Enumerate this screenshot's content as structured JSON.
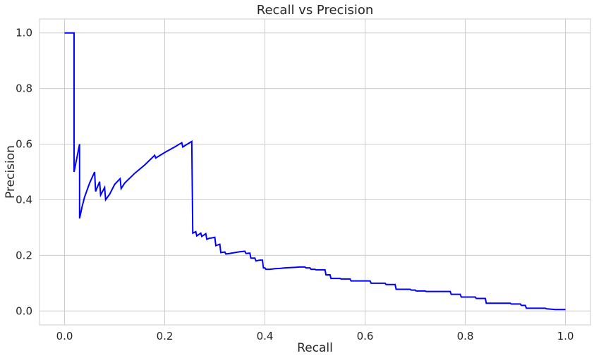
{
  "chart_data": {
    "type": "line",
    "title": "Recall vs Precision",
    "xlabel": "Recall",
    "ylabel": "Precision",
    "xlim": [
      -0.05,
      1.05
    ],
    "ylim": [
      -0.05,
      1.05
    ],
    "xticks": [
      "0.0",
      "0.2",
      "0.4",
      "0.6",
      "0.8",
      "1.0"
    ],
    "yticks": [
      "0.0",
      "0.2",
      "0.4",
      "0.6",
      "0.8",
      "1.0"
    ],
    "grid": true,
    "legend": "none",
    "series": [
      {
        "color": "#0000ff",
        "x": [
          0.0,
          0.019,
          0.019,
          0.03,
          0.03,
          0.035,
          0.04,
          0.05,
          0.06,
          0.062,
          0.07,
          0.072,
          0.08,
          0.082,
          0.09,
          0.1,
          0.111,
          0.113,
          0.12,
          0.14,
          0.16,
          0.18,
          0.182,
          0.2,
          0.22,
          0.234,
          0.236,
          0.254,
          0.256,
          0.262,
          0.264,
          0.272,
          0.274,
          0.282,
          0.284,
          0.29,
          0.292,
          0.3,
          0.302,
          0.31,
          0.312,
          0.32,
          0.322,
          0.33,
          0.34,
          0.35,
          0.36,
          0.362,
          0.37,
          0.372,
          0.38,
          0.382,
          0.39,
          0.395,
          0.397,
          0.4,
          0.402,
          0.41,
          0.42,
          0.43,
          0.44,
          0.45,
          0.46,
          0.47,
          0.48,
          0.482,
          0.49,
          0.492,
          0.5,
          0.502,
          0.52,
          0.522,
          0.53,
          0.532,
          0.55,
          0.552,
          0.57,
          0.572,
          0.61,
          0.612,
          0.64,
          0.642,
          0.66,
          0.662,
          0.69,
          0.692,
          0.7,
          0.702,
          0.72,
          0.722,
          0.77,
          0.772,
          0.79,
          0.792,
          0.82,
          0.822,
          0.84,
          0.842,
          0.89,
          0.892,
          0.91,
          0.912,
          0.92,
          0.922,
          0.96,
          0.962,
          0.98,
          1.0
        ],
        "y": [
          1.0,
          1.0,
          0.5,
          0.6,
          0.333,
          0.375,
          0.41,
          0.46,
          0.5,
          0.43,
          0.465,
          0.417,
          0.444,
          0.4,
          0.42,
          0.455,
          0.476,
          0.44,
          0.46,
          0.495,
          0.525,
          0.56,
          0.55,
          0.57,
          0.59,
          0.605,
          0.59,
          0.61,
          0.28,
          0.285,
          0.27,
          0.28,
          0.268,
          0.278,
          0.258,
          0.262,
          0.262,
          0.265,
          0.235,
          0.24,
          0.21,
          0.212,
          0.205,
          0.207,
          0.21,
          0.213,
          0.215,
          0.207,
          0.208,
          0.19,
          0.19,
          0.18,
          0.183,
          0.183,
          0.155,
          0.155,
          0.15,
          0.15,
          0.152,
          0.153,
          0.155,
          0.156,
          0.157,
          0.158,
          0.158,
          0.155,
          0.155,
          0.15,
          0.15,
          0.148,
          0.148,
          0.13,
          0.13,
          0.117,
          0.117,
          0.115,
          0.115,
          0.108,
          0.108,
          0.1,
          0.1,
          0.095,
          0.095,
          0.078,
          0.078,
          0.075,
          0.075,
          0.072,
          0.072,
          0.07,
          0.07,
          0.06,
          0.06,
          0.05,
          0.05,
          0.045,
          0.045,
          0.028,
          0.028,
          0.025,
          0.025,
          0.02,
          0.02,
          0.01,
          0.01,
          0.008,
          0.005,
          0.005
        ]
      }
    ]
  }
}
